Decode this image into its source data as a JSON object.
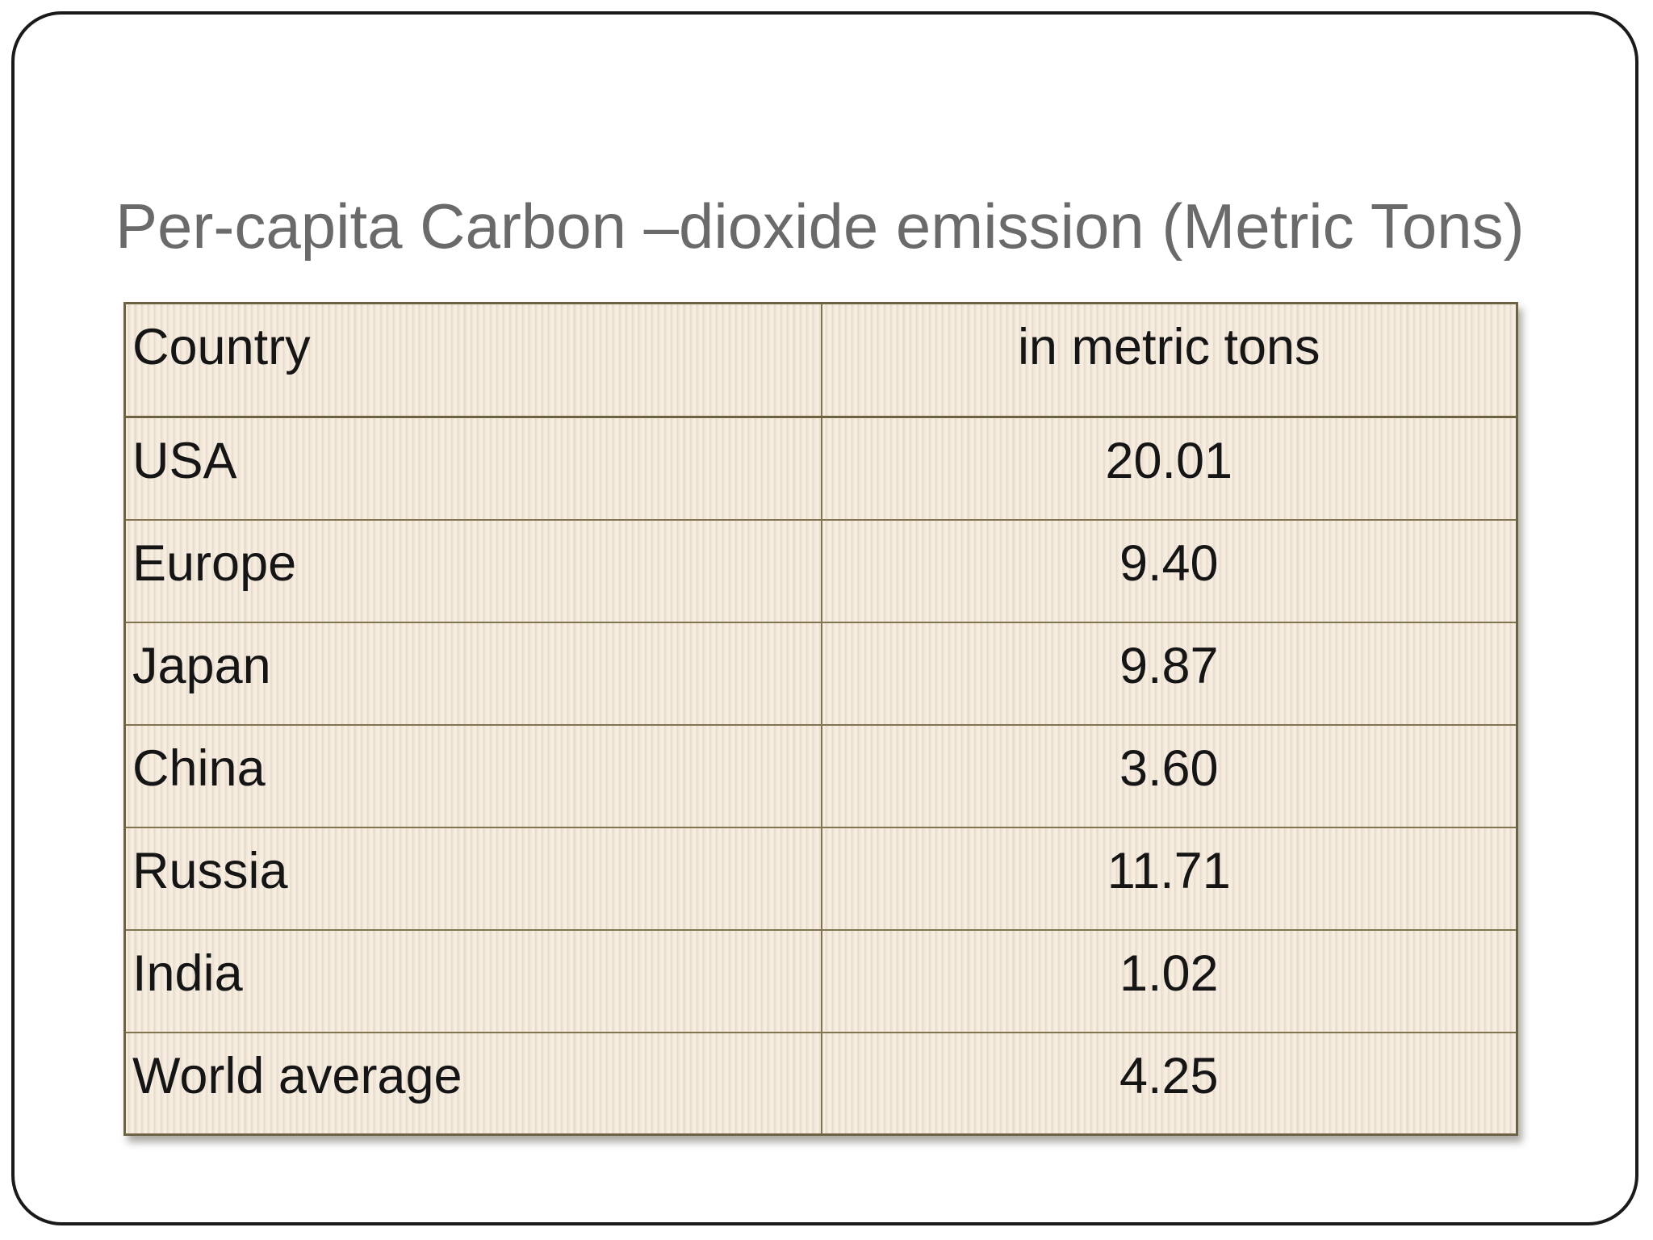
{
  "slide": {
    "title": "Per-capita Carbon –dioxide emission (Metric Tons)"
  },
  "table": {
    "columns": [
      "Country",
      "in metric tons"
    ],
    "rows": [
      {
        "country": "USA",
        "value": "20.01"
      },
      {
        "country": "Europe",
        "value": "9.40"
      },
      {
        "country": "Japan",
        "value": "9.87"
      },
      {
        "country": "China",
        "value": "3.60"
      },
      {
        "country": "Russia",
        "value": "11.71"
      },
      {
        "country": "India",
        "value": "1.02"
      },
      {
        "country": "World average",
        "value": "4.25"
      }
    ]
  },
  "colors": {
    "title_text": "#6a6a6a",
    "cell_text": "#151515",
    "cell_background": "#f4ebdf",
    "cell_stripe": "#eadcc9",
    "table_border": "#6d6342",
    "inner_border": "#80754f",
    "frame_border": "#1a1a1a"
  }
}
